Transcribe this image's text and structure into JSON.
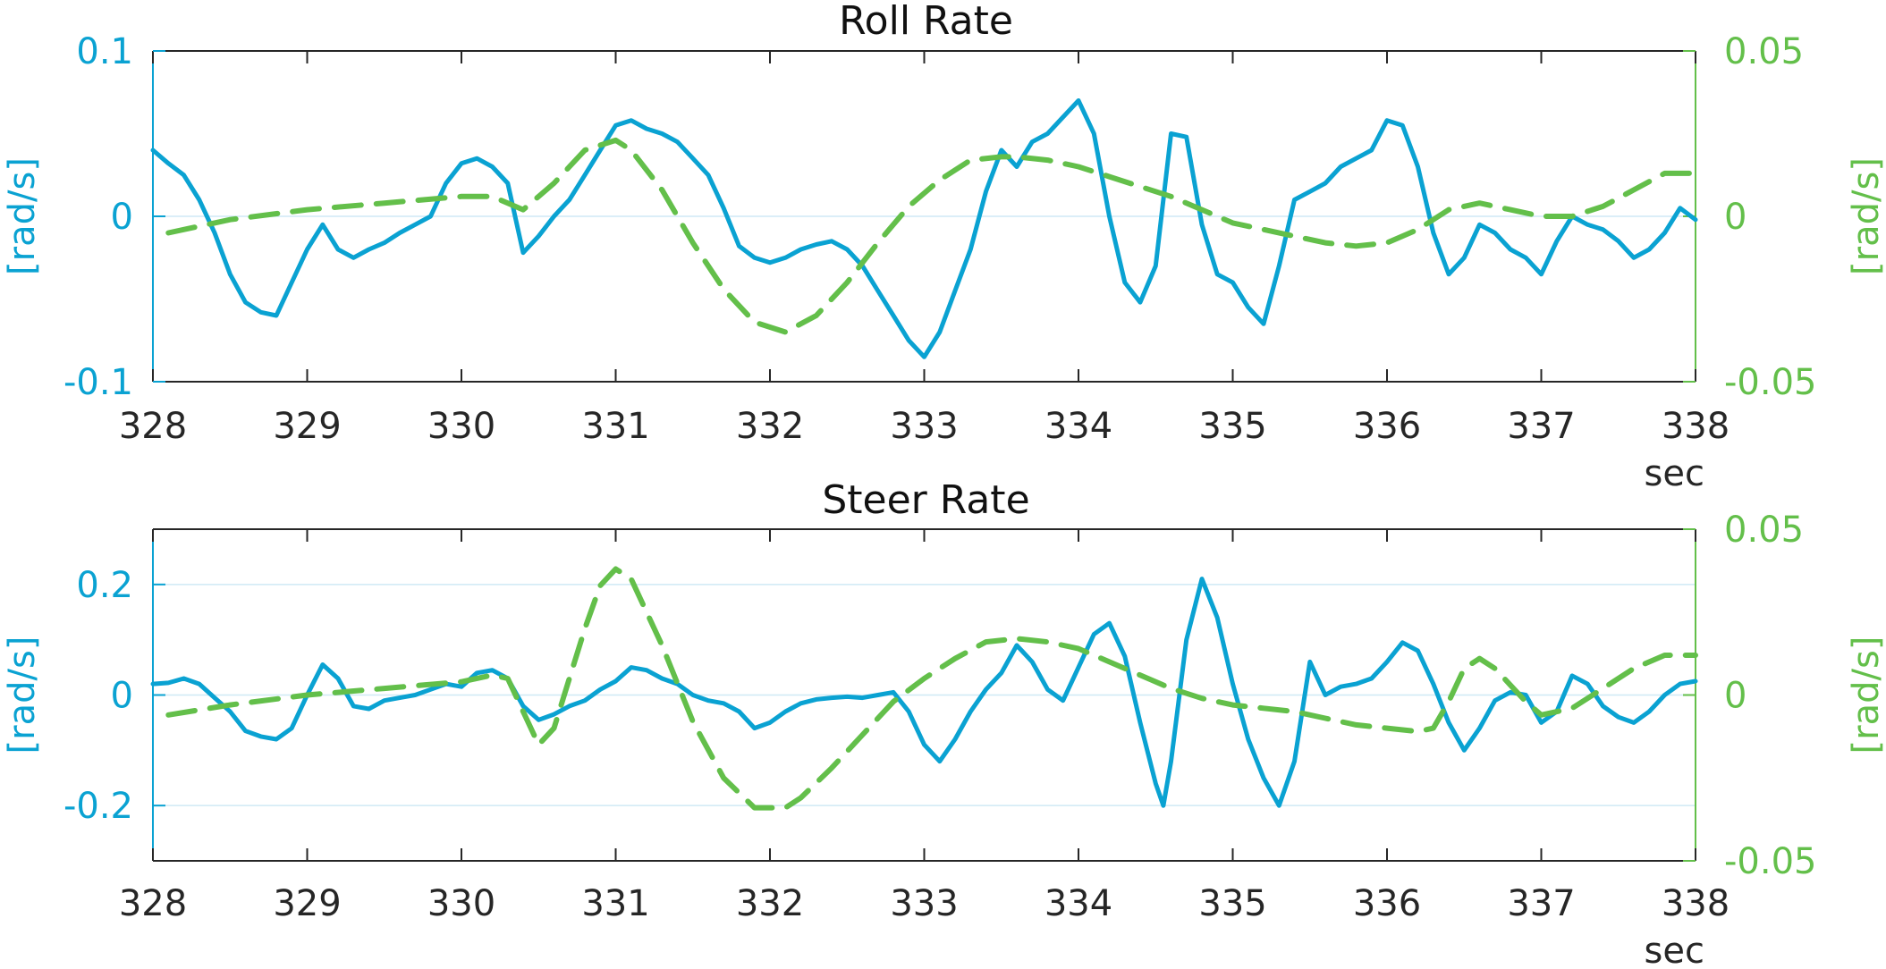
{
  "chart_data": [
    {
      "type": "line",
      "title": "Roll Rate",
      "xlabel": "sec",
      "ylabel_left": "[rad/s]",
      "ylabel_right": "[rad/s]",
      "xlim": [
        328,
        338
      ],
      "xticks": [
        328,
        329,
        330,
        331,
        332,
        333,
        334,
        335,
        336,
        337,
        338
      ],
      "ylim_left": [
        -0.1,
        0.1
      ],
      "yticks_left": [
        "-0.1",
        "0",
        "0.1"
      ],
      "ylim_right": [
        -0.05,
        0.05
      ],
      "yticks_right": [
        "-0.05",
        "0",
        "0.05"
      ],
      "grid": "horizontal",
      "colors": {
        "left": "#0aa2d2",
        "right": "#63bf4a"
      },
      "series": [
        {
          "axis": "left",
          "style": "solid",
          "x": [
            328.0,
            328.1,
            328.2,
            328.3,
            328.4,
            328.5,
            328.6,
            328.7,
            328.8,
            328.9,
            329.0,
            329.1,
            329.2,
            329.3,
            329.4,
            329.5,
            329.6,
            329.7,
            329.8,
            329.9,
            330.0,
            330.1,
            330.2,
            330.3,
            330.4,
            330.5,
            330.6,
            330.7,
            330.8,
            330.9,
            331.0,
            331.1,
            331.2,
            331.3,
            331.4,
            331.5,
            331.6,
            331.7,
            331.8,
            331.9,
            332.0,
            332.1,
            332.2,
            332.3,
            332.4,
            332.5,
            332.6,
            332.7,
            332.8,
            332.9,
            333.0,
            333.1,
            333.2,
            333.3,
            333.4,
            333.5,
            333.6,
            333.7,
            333.8,
            333.9,
            334.0,
            334.1,
            334.2,
            334.3,
            334.4,
            334.5,
            334.6,
            334.7,
            334.8,
            334.9,
            335.0,
            335.1,
            335.2,
            335.3,
            335.4,
            335.5,
            335.6,
            335.7,
            335.8,
            335.9,
            336.0,
            336.1,
            336.2,
            336.3,
            336.4,
            336.5,
            336.6,
            336.7,
            336.8,
            336.9,
            337.0,
            337.1,
            337.2,
            337.3,
            337.4,
            337.5,
            337.6,
            337.7,
            337.8,
            337.9,
            338.0
          ],
          "y": [
            0.04,
            0.032,
            0.025,
            0.01,
            -0.01,
            -0.035,
            -0.052,
            -0.058,
            -0.06,
            -0.04,
            -0.02,
            -0.005,
            -0.02,
            -0.025,
            -0.02,
            -0.016,
            -0.01,
            -0.005,
            0.0,
            0.02,
            0.032,
            0.035,
            0.03,
            0.02,
            -0.022,
            -0.012,
            0.0,
            0.01,
            0.025,
            0.04,
            0.055,
            0.058,
            0.053,
            0.05,
            0.045,
            0.035,
            0.025,
            0.005,
            -0.018,
            -0.025,
            -0.028,
            -0.025,
            -0.02,
            -0.017,
            -0.015,
            -0.02,
            -0.03,
            -0.045,
            -0.06,
            -0.075,
            -0.085,
            -0.07,
            -0.045,
            -0.02,
            0.015,
            0.04,
            0.03,
            0.045,
            0.05,
            0.06,
            0.07,
            0.05,
            0.0,
            -0.04,
            -0.052,
            -0.03,
            0.05,
            0.048,
            -0.005,
            -0.035,
            -0.04,
            -0.055,
            -0.065,
            -0.03,
            0.01,
            0.015,
            0.02,
            0.03,
            0.035,
            0.04,
            0.058,
            0.055,
            0.03,
            -0.01,
            -0.035,
            -0.025,
            -0.005,
            -0.01,
            -0.02,
            -0.025,
            -0.035,
            -0.015,
            0.0,
            -0.005,
            -0.008,
            -0.015,
            -0.025,
            -0.02,
            -0.01,
            0.005,
            -0.002
          ]
        },
        {
          "axis": "right",
          "style": "dashed",
          "x": [
            328.1,
            328.5,
            329.0,
            329.5,
            330.0,
            330.2,
            330.4,
            330.6,
            330.8,
            331.0,
            331.1,
            331.3,
            331.5,
            331.7,
            331.9,
            332.1,
            332.3,
            332.5,
            332.7,
            332.9,
            333.1,
            333.3,
            333.5,
            333.6,
            333.8,
            334.0,
            334.2,
            334.4,
            334.6,
            334.8,
            335.0,
            335.2,
            335.4,
            335.6,
            335.8,
            336.0,
            336.2,
            336.4,
            336.6,
            336.8,
            337.0,
            337.2,
            337.4,
            337.6,
            337.8,
            338.0
          ],
          "y": [
            -0.005,
            -0.001,
            0.002,
            0.004,
            0.006,
            0.006,
            0.002,
            0.01,
            0.02,
            0.023,
            0.02,
            0.008,
            -0.008,
            -0.022,
            -0.032,
            -0.035,
            -0.03,
            -0.02,
            -0.008,
            0.003,
            0.011,
            0.017,
            0.018,
            0.018,
            0.017,
            0.015,
            0.012,
            0.009,
            0.006,
            0.002,
            -0.002,
            -0.004,
            -0.006,
            -0.008,
            -0.009,
            -0.008,
            -0.004,
            0.002,
            0.004,
            0.002,
            0.0,
            0.0,
            0.003,
            0.008,
            0.013,
            0.013
          ]
        }
      ]
    },
    {
      "type": "line",
      "title": "Steer Rate",
      "xlabel": "sec",
      "ylabel_left": "[rad/s]",
      "ylabel_right": "[rad/s]",
      "xlim": [
        328,
        338
      ],
      "xticks": [
        328,
        329,
        330,
        331,
        332,
        333,
        334,
        335,
        336,
        337,
        338
      ],
      "ylim_left": [
        -0.3,
        0.3
      ],
      "yticks_left": [
        "-0.2",
        "0",
        "0.2"
      ],
      "ylim_right": [
        -0.05,
        0.05
      ],
      "yticks_right": [
        "-0.05",
        "0",
        "0.05"
      ],
      "grid": "horizontal",
      "colors": {
        "left": "#0aa2d2",
        "right": "#63bf4a"
      },
      "series": [
        {
          "axis": "left",
          "style": "solid",
          "x": [
            328.0,
            328.1,
            328.2,
            328.3,
            328.4,
            328.5,
            328.6,
            328.7,
            328.8,
            328.9,
            329.0,
            329.1,
            329.2,
            329.3,
            329.4,
            329.5,
            329.6,
            329.7,
            329.8,
            329.9,
            330.0,
            330.1,
            330.2,
            330.3,
            330.4,
            330.5,
            330.6,
            330.7,
            330.8,
            330.9,
            331.0,
            331.1,
            331.2,
            331.3,
            331.4,
            331.5,
            331.6,
            331.7,
            331.8,
            331.9,
            332.0,
            332.1,
            332.2,
            332.3,
            332.4,
            332.5,
            332.6,
            332.7,
            332.8,
            332.9,
            333.0,
            333.1,
            333.2,
            333.3,
            333.4,
            333.5,
            333.6,
            333.7,
            333.8,
            333.9,
            334.0,
            334.1,
            334.2,
            334.3,
            334.4,
            334.5,
            334.55,
            334.6,
            334.7,
            334.8,
            334.9,
            335.0,
            335.1,
            335.2,
            335.3,
            335.4,
            335.5,
            335.6,
            335.7,
            335.8,
            335.9,
            336.0,
            336.1,
            336.2,
            336.3,
            336.4,
            336.5,
            336.6,
            336.7,
            336.8,
            336.9,
            337.0,
            337.1,
            337.2,
            337.3,
            337.4,
            337.5,
            337.6,
            337.7,
            337.8,
            337.9,
            338.0
          ],
          "y": [
            0.02,
            0.022,
            0.03,
            0.02,
            -0.005,
            -0.03,
            -0.065,
            -0.075,
            -0.08,
            -0.06,
            0.0,
            0.055,
            0.03,
            -0.02,
            -0.025,
            -0.01,
            -0.005,
            0.0,
            0.01,
            0.02,
            0.015,
            0.04,
            0.045,
            0.03,
            -0.02,
            -0.045,
            -0.035,
            -0.02,
            -0.01,
            0.01,
            0.025,
            0.05,
            0.045,
            0.03,
            0.02,
            0.0,
            -0.01,
            -0.015,
            -0.03,
            -0.06,
            -0.05,
            -0.03,
            -0.015,
            -0.008,
            -0.005,
            -0.003,
            -0.005,
            0.0,
            0.005,
            -0.03,
            -0.09,
            -0.12,
            -0.08,
            -0.03,
            0.01,
            0.04,
            0.09,
            0.06,
            0.01,
            -0.01,
            0.05,
            0.11,
            0.13,
            0.07,
            -0.05,
            -0.16,
            -0.2,
            -0.12,
            0.1,
            0.21,
            0.14,
            0.02,
            -0.08,
            -0.15,
            -0.2,
            -0.12,
            0.06,
            0.0,
            0.015,
            0.02,
            0.03,
            0.06,
            0.095,
            0.08,
            0.02,
            -0.05,
            -0.1,
            -0.06,
            -0.01,
            0.005,
            0.0,
            -0.05,
            -0.03,
            0.035,
            0.02,
            -0.02,
            -0.04,
            -0.05,
            -0.03,
            0.0,
            0.02,
            0.025
          ]
        },
        {
          "axis": "right",
          "style": "dashed",
          "x": [
            328.1,
            328.5,
            329.0,
            329.5,
            330.0,
            330.2,
            330.3,
            330.4,
            330.5,
            330.6,
            330.7,
            330.8,
            330.9,
            331.0,
            331.1,
            331.3,
            331.5,
            331.7,
            331.9,
            332.1,
            332.2,
            332.4,
            332.6,
            332.8,
            333.0,
            333.2,
            333.4,
            333.6,
            333.8,
            334.0,
            334.2,
            334.4,
            334.6,
            334.8,
            335.0,
            335.2,
            335.4,
            335.6,
            335.8,
            336.0,
            336.2,
            336.3,
            336.4,
            336.5,
            336.6,
            336.7,
            336.8,
            336.9,
            337.0,
            337.2,
            337.4,
            337.6,
            337.8,
            338.0
          ],
          "y": [
            -0.006,
            -0.003,
            0.0,
            0.002,
            0.004,
            0.006,
            0.005,
            -0.005,
            -0.015,
            -0.01,
            0.005,
            0.02,
            0.033,
            0.038,
            0.035,
            0.015,
            -0.008,
            -0.025,
            -0.034,
            -0.034,
            -0.031,
            -0.022,
            -0.012,
            -0.002,
            0.005,
            0.011,
            0.016,
            0.017,
            0.016,
            0.014,
            0.01,
            0.006,
            0.002,
            -0.001,
            -0.003,
            -0.004,
            -0.005,
            -0.007,
            -0.009,
            -0.01,
            -0.011,
            -0.01,
            -0.002,
            0.008,
            0.011,
            0.008,
            0.003,
            -0.002,
            -0.006,
            -0.004,
            0.002,
            0.008,
            0.012,
            0.012
          ]
        }
      ]
    }
  ]
}
